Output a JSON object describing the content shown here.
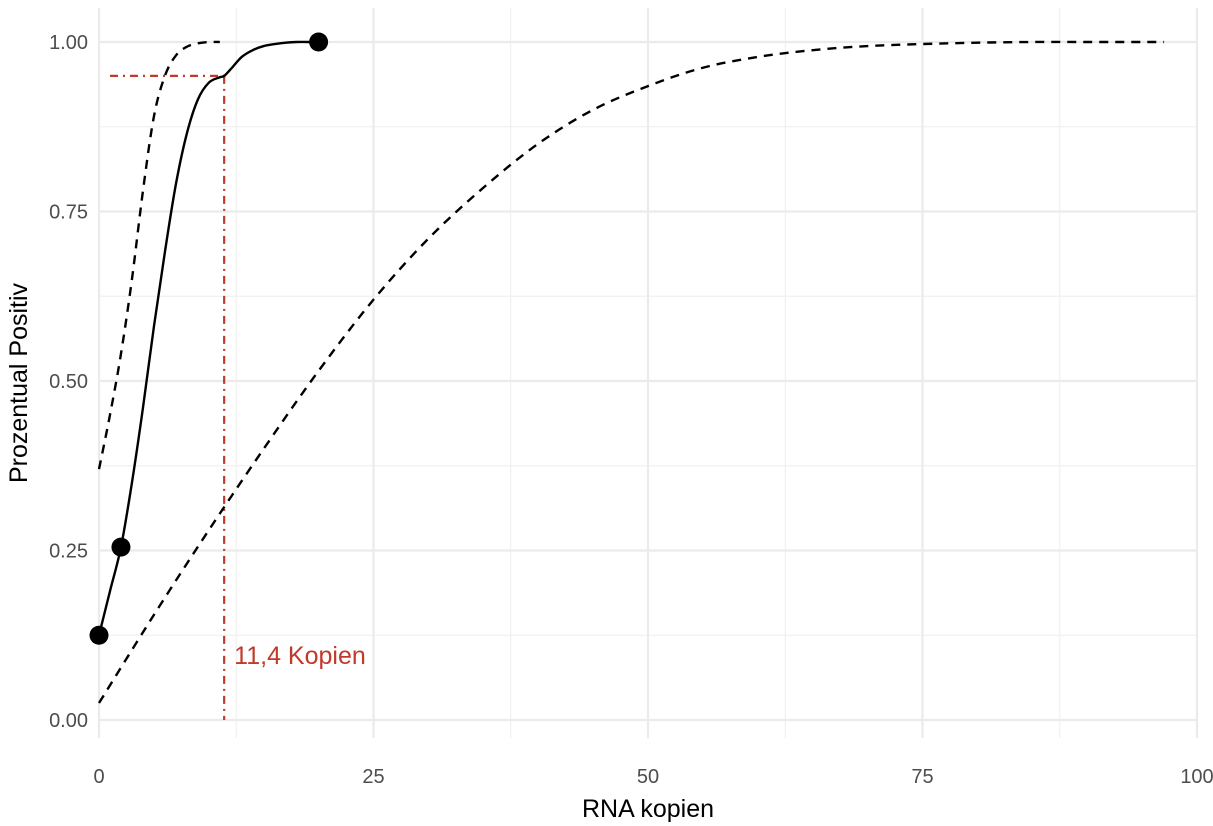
{
  "chart_data": {
    "type": "line",
    "xlabel": "RNA kopien",
    "ylabel": "Prozentual Positiv",
    "xlim": [
      0,
      100
    ],
    "ylim": [
      0,
      1
    ],
    "x_ticks": [
      0,
      25,
      50,
      75,
      100
    ],
    "x_tick_labels": [
      "0",
      "25",
      "50",
      "75",
      "100"
    ],
    "y_ticks": [
      0,
      0.25,
      0.5,
      0.75,
      1.0
    ],
    "y_tick_labels": [
      "0.00",
      "0.25",
      "0.50",
      "0.75",
      "1.00"
    ],
    "grid": true,
    "legend": "none",
    "series": [
      {
        "style": "solid",
        "color": "#000000",
        "x": [
          0,
          1,
          2,
          3,
          4,
          5,
          6,
          7,
          8,
          9,
          10,
          11,
          11.4,
          12,
          13,
          14,
          15,
          16,
          17,
          18,
          19,
          20
        ],
        "y": [
          0.125,
          0.19,
          0.255,
          0.35,
          0.46,
          0.58,
          0.69,
          0.79,
          0.865,
          0.915,
          0.94,
          0.948,
          0.95,
          0.96,
          0.978,
          0.988,
          0.994,
          0.997,
          0.999,
          1.0,
          1.0,
          1.0
        ]
      },
      {
        "style": "dashed",
        "color": "#000000",
        "x": [
          0,
          1,
          2,
          3,
          4,
          5,
          6,
          7,
          8,
          9,
          10,
          11
        ],
        "y": [
          0.37,
          0.45,
          0.54,
          0.65,
          0.78,
          0.89,
          0.95,
          0.98,
          0.993,
          0.998,
          1.0,
          1.0
        ]
      },
      {
        "style": "dashed",
        "color": "#000000",
        "x": [
          0,
          5,
          10,
          15,
          20,
          25,
          30,
          35,
          40,
          45,
          50,
          55,
          60,
          65,
          70,
          75,
          80,
          85,
          90,
          95,
          97
        ],
        "y": [
          0.025,
          0.155,
          0.28,
          0.4,
          0.515,
          0.62,
          0.71,
          0.785,
          0.85,
          0.9,
          0.935,
          0.962,
          0.978,
          0.988,
          0.994,
          0.997,
          0.999,
          1.0,
          1.0,
          1.0,
          1.0
        ]
      }
    ],
    "points": {
      "color": "#000000",
      "x": [
        0,
        2,
        20
      ],
      "y": [
        0.125,
        0.255,
        1.0
      ]
    },
    "annotation": {
      "x": 11.4,
      "y": 0.95,
      "color": "#c0392b",
      "label": "11,4 Kopien"
    }
  }
}
